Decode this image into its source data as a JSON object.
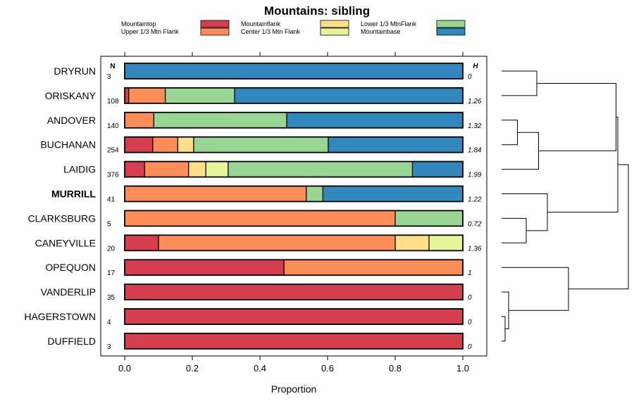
{
  "chart_data": {
    "type": "bar",
    "orientation": "horizontal",
    "stacked": true,
    "title": "Mountains: sibling",
    "xlabel": "Proportion",
    "ylabel": "",
    "xlim": [
      0,
      1
    ],
    "xticks": [
      "0.0",
      "0.2",
      "0.4",
      "0.6",
      "0.8",
      "1.0"
    ],
    "xtick_values": [
      0,
      0.2,
      0.4,
      0.6,
      0.8,
      1.0
    ],
    "n_label": "N",
    "h_label": "H",
    "highlighted_category": "MURRILL",
    "legend": [
      {
        "name": "Mountaintop",
        "color": "#d53e4f"
      },
      {
        "name": "Upper 1/3 Mtn Flank",
        "color": "#fc8d59"
      },
      {
        "name": "Mountainflank",
        "color": "#fee08b"
      },
      {
        "name": "Center 1/3 Mtn Flank",
        "color": "#e6f598"
      },
      {
        "name": "Lower 1/3 MtnFlank",
        "color": "#99d594"
      },
      {
        "name": "Mountainbase",
        "color": "#3288bd"
      }
    ],
    "rows": [
      {
        "label": "DRYRUN",
        "n": "3",
        "h": "0",
        "values": [
          0,
          0,
          0,
          0,
          0,
          1.0
        ]
      },
      {
        "label": "ORISKANY",
        "n": "108",
        "h": "1.26",
        "values": [
          0.012,
          0.108,
          0,
          0,
          0.205,
          0.675
        ]
      },
      {
        "label": "ANDOVER",
        "n": "140",
        "h": "1.32",
        "values": [
          0,
          0.086,
          0,
          0,
          0.393,
          0.521
        ]
      },
      {
        "label": "BUCHANAN",
        "n": "254",
        "h": "1.84",
        "values": [
          0.083,
          0.074,
          0.047,
          0,
          0.398,
          0.398
        ]
      },
      {
        "label": "LAIDIG",
        "n": "376",
        "h": "1.99",
        "values": [
          0.059,
          0.13,
          0.051,
          0.066,
          0.545,
          0.149
        ]
      },
      {
        "label": "MURRILL",
        "n": "41",
        "h": "1.22",
        "values": [
          0,
          0.537,
          0,
          0,
          0.049,
          0.414
        ]
      },
      {
        "label": "CLARKSBURG",
        "n": "5",
        "h": "0.72",
        "values": [
          0,
          0.8,
          0,
          0,
          0.2,
          0
        ]
      },
      {
        "label": "CANEYVILLE",
        "n": "20",
        "h": "1.36",
        "values": [
          0.1,
          0.7,
          0.1,
          0.1,
          0,
          0
        ]
      },
      {
        "label": "OPEQUON",
        "n": "17",
        "h": "1",
        "values": [
          0.471,
          0.529,
          0,
          0,
          0,
          0
        ]
      },
      {
        "label": "VANDERLIP",
        "n": "35",
        "h": "0",
        "values": [
          1.0,
          0,
          0,
          0,
          0,
          0
        ]
      },
      {
        "label": "HAGERSTOWN",
        "n": "4",
        "h": "0",
        "values": [
          1.0,
          0,
          0,
          0,
          0,
          0
        ]
      },
      {
        "label": "DUFFIELD",
        "n": "3",
        "h": "0",
        "values": [
          1.0,
          0,
          0,
          0,
          0,
          0
        ]
      }
    ],
    "dendrogram": {
      "leaves": [
        "DRYRUN",
        "ORISKANY",
        "ANDOVER",
        "BUCHANAN",
        "LAIDIG",
        "MURRILL",
        "CLARKSBURG",
        "CANEYVILLE",
        "OPEQUON",
        "VANDERLIP",
        "HAGERSTOWN",
        "DUFFIELD"
      ],
      "merges": [
        {
          "a": "L10",
          "b": "L11",
          "height": 0.02
        },
        {
          "a": "L9",
          "b": "C0",
          "height": 0.04
        },
        {
          "a": "L2",
          "b": "L3",
          "height": 0.09
        },
        {
          "a": "L6",
          "b": "L7",
          "height": 0.14
        },
        {
          "a": "L0",
          "b": "L1",
          "height": 0.2
        },
        {
          "a": "C2",
          "b": "L4",
          "height": 0.21
        },
        {
          "a": "L5",
          "b": "C3",
          "height": 0.26
        },
        {
          "a": "L8",
          "b": "C1",
          "height": 0.38
        },
        {
          "a": "C4",
          "b": "C5",
          "height": 0.65
        },
        {
          "a": "C8",
          "b": "C6",
          "height": 0.66
        },
        {
          "a": "C9",
          "b": "C7",
          "height": 0.72
        }
      ]
    }
  }
}
